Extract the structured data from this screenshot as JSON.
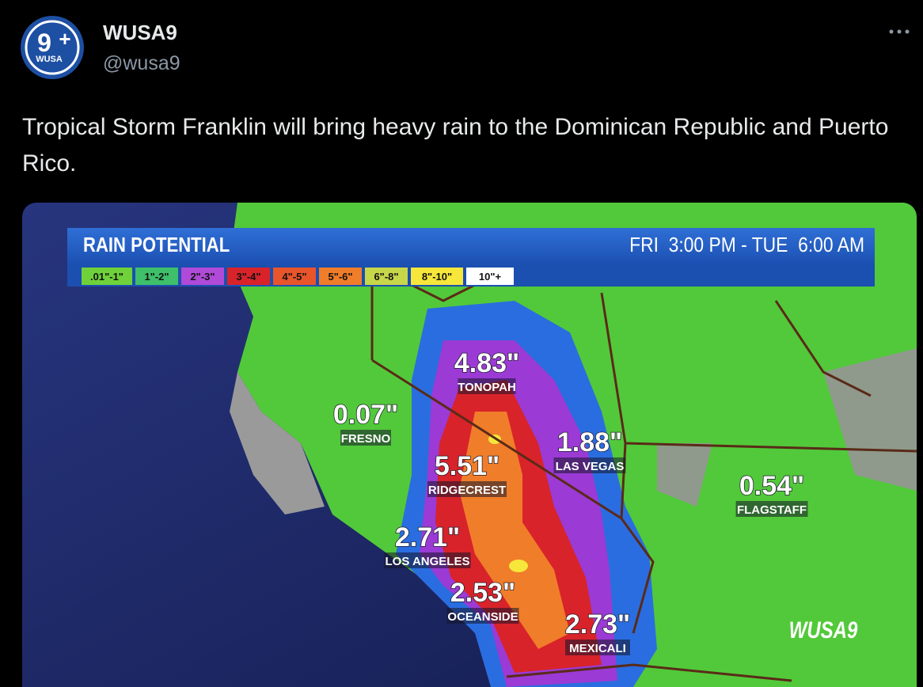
{
  "tweet": {
    "avatar": {
      "number": "9",
      "plus": "+",
      "brand": "WUSA"
    },
    "author": "WUSA9",
    "handle": "@wusa9",
    "text": "Tropical Storm Franklin will bring heavy rain to the Dominican Republic and Puerto Rico.",
    "image": {
      "title": "RAIN POTENTIAL",
      "time_range": "FRI  3:00 PM - TUE  6:00 AM",
      "legend": [
        {
          "label": ".01\"-1\"",
          "color": "#6fd23a"
        },
        {
          "label": "1\"-2\"",
          "color": "#3fbf6a"
        },
        {
          "label": "2\"-3\"",
          "color": "#b04ad8"
        },
        {
          "label": "3\"-4\"",
          "color": "#d8232a"
        },
        {
          "label": "4\"-5\"",
          "color": "#e8552b"
        },
        {
          "label": "5\"-6\"",
          "color": "#f07d2a"
        },
        {
          "label": "6\"-8\"",
          "color": "#c8d64a"
        },
        {
          "label": "8\"-10\"",
          "color": "#f6e73a"
        },
        {
          "label": "10\"+",
          "color": "#ffffff"
        }
      ],
      "cities": [
        {
          "value": "4.83\"",
          "name": "TONOPAH"
        },
        {
          "value": "0.07\"",
          "name": "FRESNO"
        },
        {
          "value": "1.88\"",
          "name": "LAS VEGAS"
        },
        {
          "value": "5.51\"",
          "name": "RIDGECREST"
        },
        {
          "value": "0.54\"",
          "name": "FLAGSTAFF"
        },
        {
          "value": "2.71\"",
          "name": "LOS ANGELES"
        },
        {
          "value": "2.53\"",
          "name": "OCEANSIDE"
        },
        {
          "value": "2.73\"",
          "name": "MEXICALI"
        }
      ],
      "watermark": "WUSA9"
    }
  }
}
